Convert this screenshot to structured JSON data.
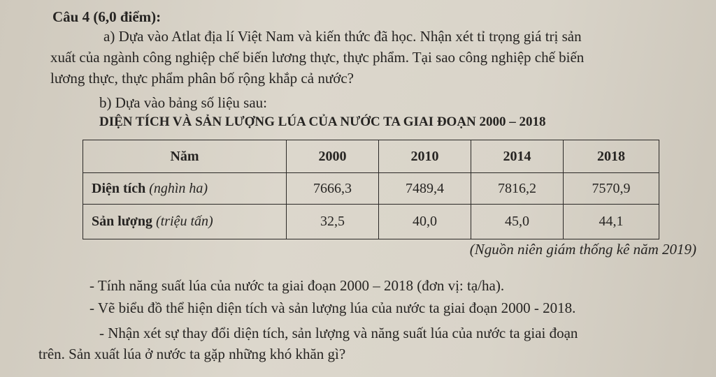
{
  "question": {
    "heading": "Câu 4 (6,0 điểm):",
    "part_a": [
      "a) Dựa vào Atlat địa lí Việt Nam và kiến thức đã học. Nhận xét tỉ trọng giá trị sản",
      "xuất của ngành công nghiệp chế biến lương thực, thực phẩm. Tại sao công nghiệp chế biến",
      "lương thực, thực phẩm phân bố rộng khắp cả nước?"
    ],
    "part_b_intro": "b) Dựa vào bảng số liệu sau:",
    "table_title": "DIỆN TÍCH VÀ SẢN LƯỢNG LÚA CỦA NƯỚC TA GIAI ĐOẠN 2000 – 2018",
    "table": {
      "headers": [
        "Năm",
        "2000",
        "2010",
        "2014",
        "2018"
      ],
      "rows": [
        {
          "label": "Diện tích",
          "unit": "(nghìn ha)",
          "values": [
            "7666,3",
            "7489,4",
            "7816,2",
            "7570,9"
          ]
        },
        {
          "label": "Sản lượng",
          "unit": "(triệu tấn)",
          "values": [
            "32,5",
            "40,0",
            "45,0",
            "44,1"
          ]
        }
      ]
    },
    "source": "(Nguồn niên giám thống kê năm 2019)",
    "tasks": [
      "- Tính năng suất lúa của nước ta giai đoạn 2000 – 2018 (đơn vị: tạ/ha).",
      "- Vẽ biểu đồ thể hiện diện tích và sản lượng lúa của nước ta giai đoạn 2000 - 2018.",
      "- Nhận xét sự thay đổi diện tích, sản lượng và năng suất lúa của nước ta giai đoạn",
      "trên. Sản xuất lúa ở nước ta gặp những khó khăn gì?"
    ]
  }
}
